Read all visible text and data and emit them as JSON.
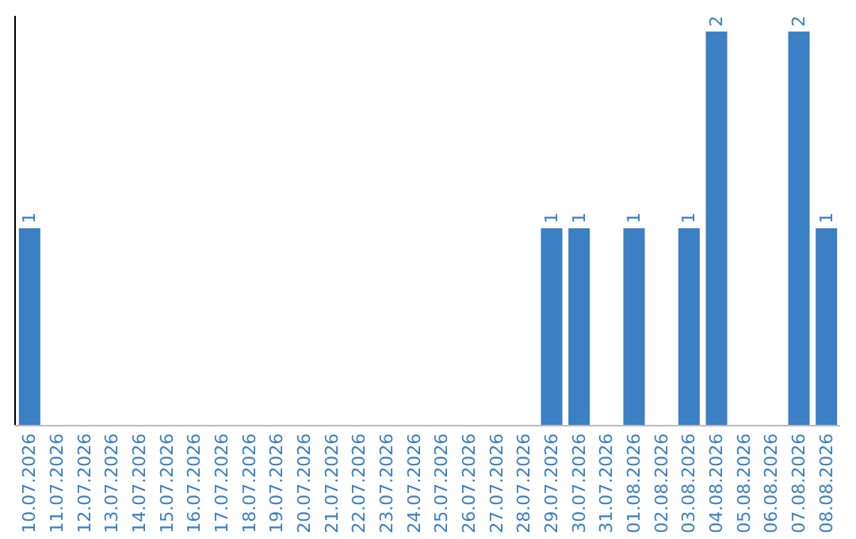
{
  "chart_data": {
    "type": "bar",
    "categories": [
      "10.07.2026",
      "11.07.2026",
      "12.07.2026",
      "13.07.2026",
      "14.07.2026",
      "15.07.2026",
      "16.07.2026",
      "17.07.2026",
      "18.07.2026",
      "19.07.2026",
      "20.07.2026",
      "21.07.2026",
      "22.07.2026",
      "23.07.2026",
      "24.07.2026",
      "25.07.2026",
      "26.07.2026",
      "27.07.2026",
      "28.07.2026",
      "29.07.2026",
      "30.07.2026",
      "31.07.2026",
      "01.08.2026",
      "02.08.2026",
      "03.08.2026",
      "04.08.2026",
      "05.08.2026",
      "06.08.2026",
      "07.08.2026",
      "08.08.2026"
    ],
    "values": [
      1,
      0,
      0,
      0,
      0,
      0,
      0,
      0,
      0,
      0,
      0,
      0,
      0,
      0,
      0,
      0,
      0,
      0,
      0,
      1,
      1,
      0,
      1,
      0,
      1,
      2,
      0,
      0,
      2,
      1
    ],
    "value_labels": [
      "1",
      null,
      null,
      null,
      null,
      null,
      null,
      null,
      null,
      null,
      null,
      null,
      null,
      null,
      null,
      null,
      null,
      null,
      null,
      "1",
      "1",
      null,
      "1",
      null,
      "1",
      "2",
      null,
      null,
      "2",
      "1"
    ],
    "color": "#3b7fc4",
    "ylim": [
      0,
      2.08
    ],
    "tick_labels": "x",
    "grid": false,
    "legend": false
  }
}
